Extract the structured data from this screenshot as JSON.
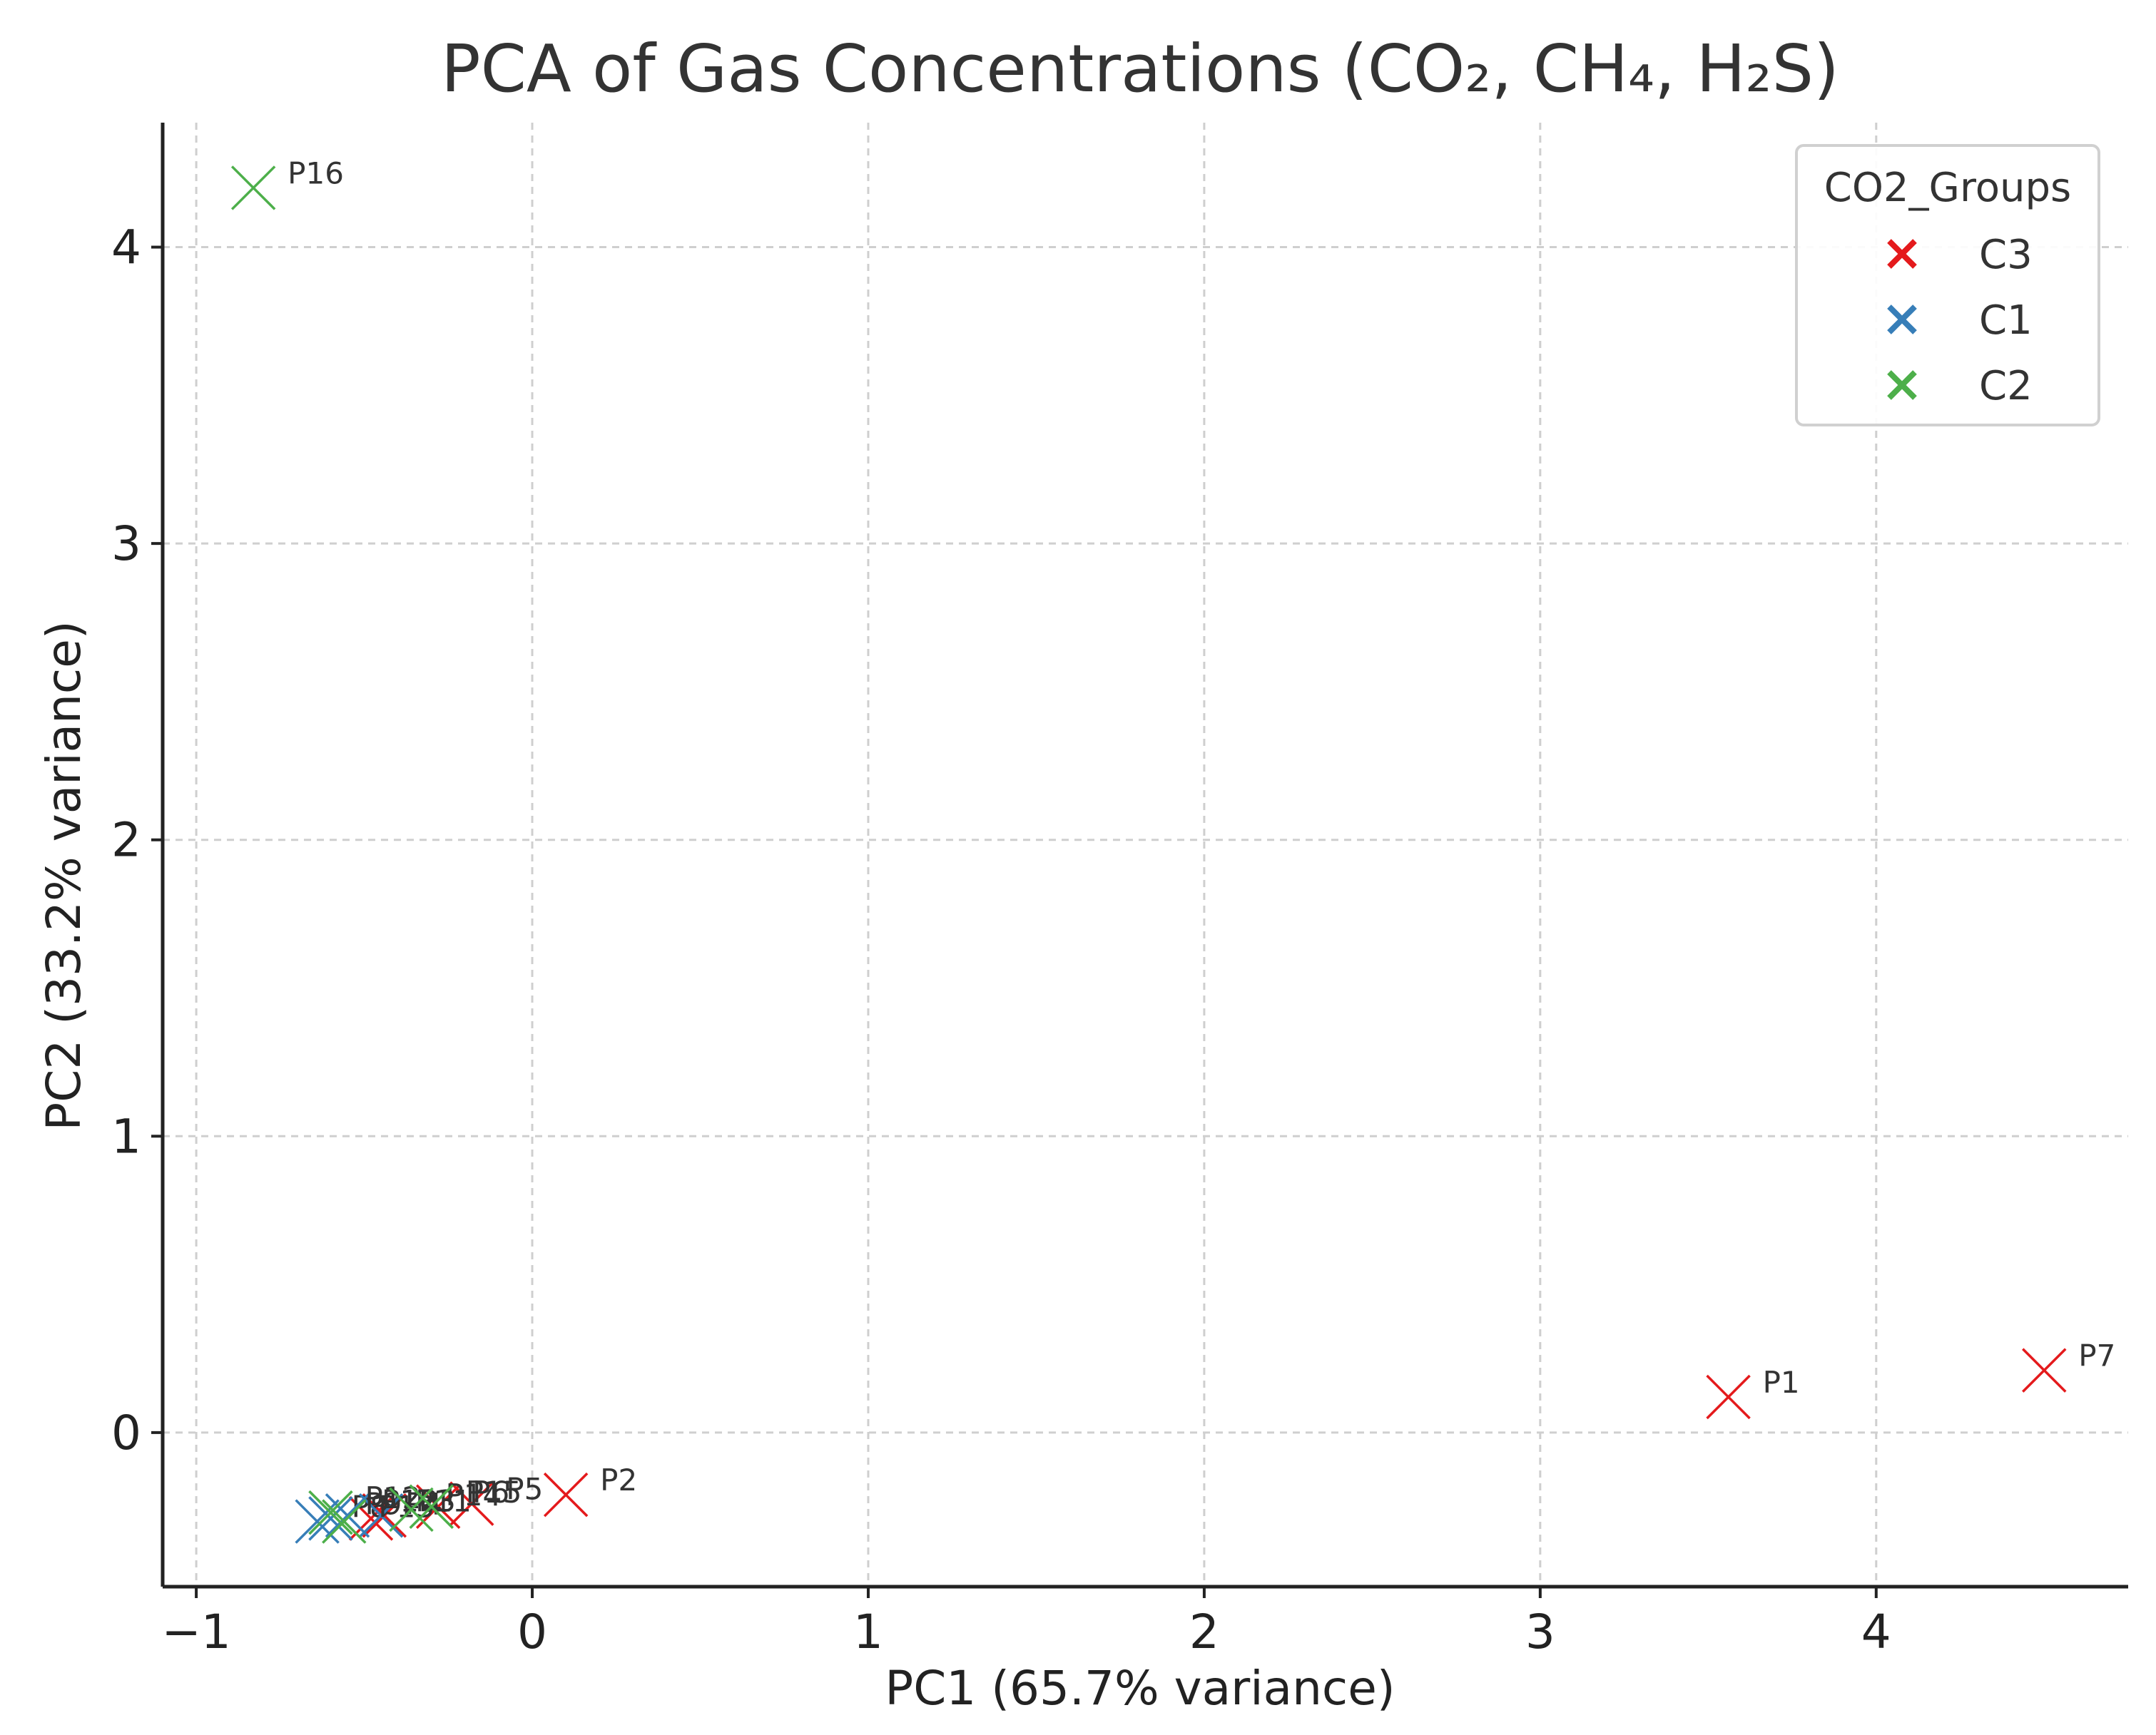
{
  "chart_data": {
    "type": "scatter",
    "title": "PCA of Gas Concentrations (CO₂, CH₄, H₂S)",
    "xlabel": "PC1 (65.7% variance)",
    "ylabel": "PC2 (33.2% variance)",
    "xlim": [
      -1.1,
      4.75
    ],
    "ylim": [
      -0.52,
      4.42
    ],
    "xticks": [
      -1,
      0,
      1,
      2,
      3,
      4
    ],
    "yticks": [
      0,
      1,
      2,
      3,
      4
    ],
    "xtick_labels": [
      "−1",
      "0",
      "1",
      "2",
      "3",
      "4"
    ],
    "ytick_labels": [
      "0",
      "1",
      "2",
      "3",
      "4"
    ],
    "grid": true,
    "marker": "x",
    "legend": {
      "title": "CO2_Groups",
      "position": "top-right",
      "entries": [
        {
          "label": "C3",
          "color": "#e41a1c"
        },
        {
          "label": "C1",
          "color": "#377eb8"
        },
        {
          "label": "C2",
          "color": "#4daf4a"
        }
      ]
    },
    "series": [
      {
        "name": "C3",
        "color": "#e41a1c",
        "points": [
          {
            "label": "P1",
            "x": 3.56,
            "y": 0.12
          },
          {
            "label": "P7",
            "x": 4.5,
            "y": 0.21
          },
          {
            "label": "P2",
            "x": 0.1,
            "y": -0.21
          },
          {
            "label": "P5",
            "x": -0.18,
            "y": -0.24
          },
          {
            "label": "P6",
            "x": -0.28,
            "y": -0.25
          },
          {
            "label": "P3",
            "x": -0.44,
            "y": -0.28
          },
          {
            "label": "P4",
            "x": -0.48,
            "y": -0.29
          }
        ]
      },
      {
        "name": "C1",
        "color": "#377eb8",
        "points": [
          {
            "label": "P8",
            "x": -0.64,
            "y": -0.3
          },
          {
            "label": "P9",
            "x": -0.6,
            "y": -0.29
          },
          {
            "label": "P10",
            "x": -0.55,
            "y": -0.28
          },
          {
            "label": "P11",
            "x": -0.45,
            "y": -0.28
          }
        ]
      },
      {
        "name": "C2",
        "color": "#4daf4a",
        "points": [
          {
            "label": "P16",
            "x": -0.83,
            "y": 4.2
          },
          {
            "label": "P12",
            "x": -0.6,
            "y": -0.27
          },
          {
            "label": "P13",
            "x": -0.56,
            "y": -0.3
          },
          {
            "label": "P14",
            "x": -0.36,
            "y": -0.26
          },
          {
            "label": "P15",
            "x": -0.3,
            "y": -0.25
          }
        ]
      }
    ]
  }
}
